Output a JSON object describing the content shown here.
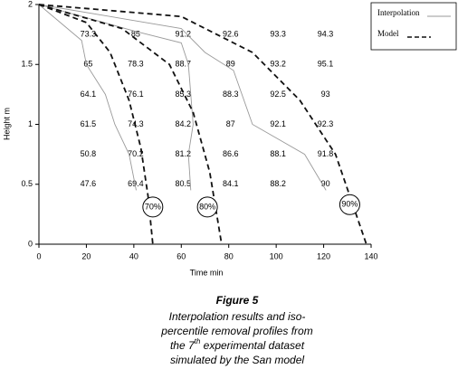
{
  "chart_data": {
    "type": "line",
    "xlabel": "Time min",
    "ylabel": "Height m",
    "xlim": [
      0,
      140
    ],
    "xticks": [
      0,
      20,
      40,
      60,
      80,
      100,
      120,
      140
    ],
    "ylim": [
      0,
      2
    ],
    "yticks": [
      0,
      0.5,
      1,
      1.5,
      2
    ],
    "legend": "upper right",
    "series": [
      {
        "name": "Interpolation",
        "color": "#9a9a9a",
        "dashed": false,
        "lines": [
          {
            "x": [
              0,
              18,
              20,
              28,
              32,
              38,
              41
            ],
            "y": [
              2,
              1.7,
              1.5,
              1.25,
              1.0,
              0.75,
              0.45
            ]
          },
          {
            "x": [
              0,
              40,
              60,
              63,
              65,
              63,
              64
            ],
            "y": [
              2,
              1.78,
              1.68,
              1.5,
              1.0,
              0.75,
              0.45
            ]
          },
          {
            "x": [
              0,
              60,
              70,
              82,
              90,
              112,
              121
            ],
            "y": [
              2,
              1.8,
              1.6,
              1.45,
              1.0,
              0.75,
              0.45
            ]
          }
        ]
      },
      {
        "name": "Model",
        "color": "#111111",
        "dashed": true,
        "lines": [
          {
            "x": [
              0,
              20,
              30,
              38,
              43,
              46,
              48
            ],
            "y": [
              2,
              1.85,
              1.6,
              1.2,
              0.8,
              0.4,
              0
            ]
          },
          {
            "x": [
              0,
              35,
              55,
              65,
              72,
              77
            ],
            "y": [
              2,
              1.8,
              1.5,
              1.1,
              0.6,
              0
            ]
          },
          {
            "x": [
              0,
              60,
              90,
              110,
              125,
              138
            ],
            "y": [
              2,
              1.9,
              1.6,
              1.2,
              0.75,
              0
            ]
          }
        ]
      }
    ],
    "grid_labels": {
      "x": [
        20,
        40,
        60,
        80,
        100,
        120
      ],
      "y": [
        1.75,
        1.5,
        1.25,
        1.0,
        0.75,
        0.5
      ],
      "values": [
        [
          73.3,
          85,
          91.2,
          92.6,
          93.3,
          94.3
        ],
        [
          65,
          78.3,
          88.7,
          89,
          93.2,
          95.1
        ],
        [
          64.1,
          76.1,
          85.3,
          88.3,
          92.5,
          93
        ],
        [
          61.5,
          74.3,
          84.2,
          87,
          92.1,
          92.3
        ],
        [
          50.8,
          70.2,
          81.2,
          86.6,
          88.1,
          91.8
        ],
        [
          47.6,
          69.4,
          80.5,
          84.1,
          88.2,
          90
        ]
      ]
    },
    "annotations": [
      {
        "text": "70%",
        "x": 48,
        "y": 0.31
      },
      {
        "text": "80%",
        "x": 71,
        "y": 0.31
      },
      {
        "text": "90%",
        "x": 131,
        "y": 0.33
      }
    ],
    "caption": {
      "title": "Figure 5",
      "lines": [
        "Interpolation results and iso-",
        "percentile removal profiles from"
      ],
      "line3": [
        "the 7",
        "th",
        " experimental dataset"
      ],
      "line4": "simulated by the San model"
    }
  }
}
